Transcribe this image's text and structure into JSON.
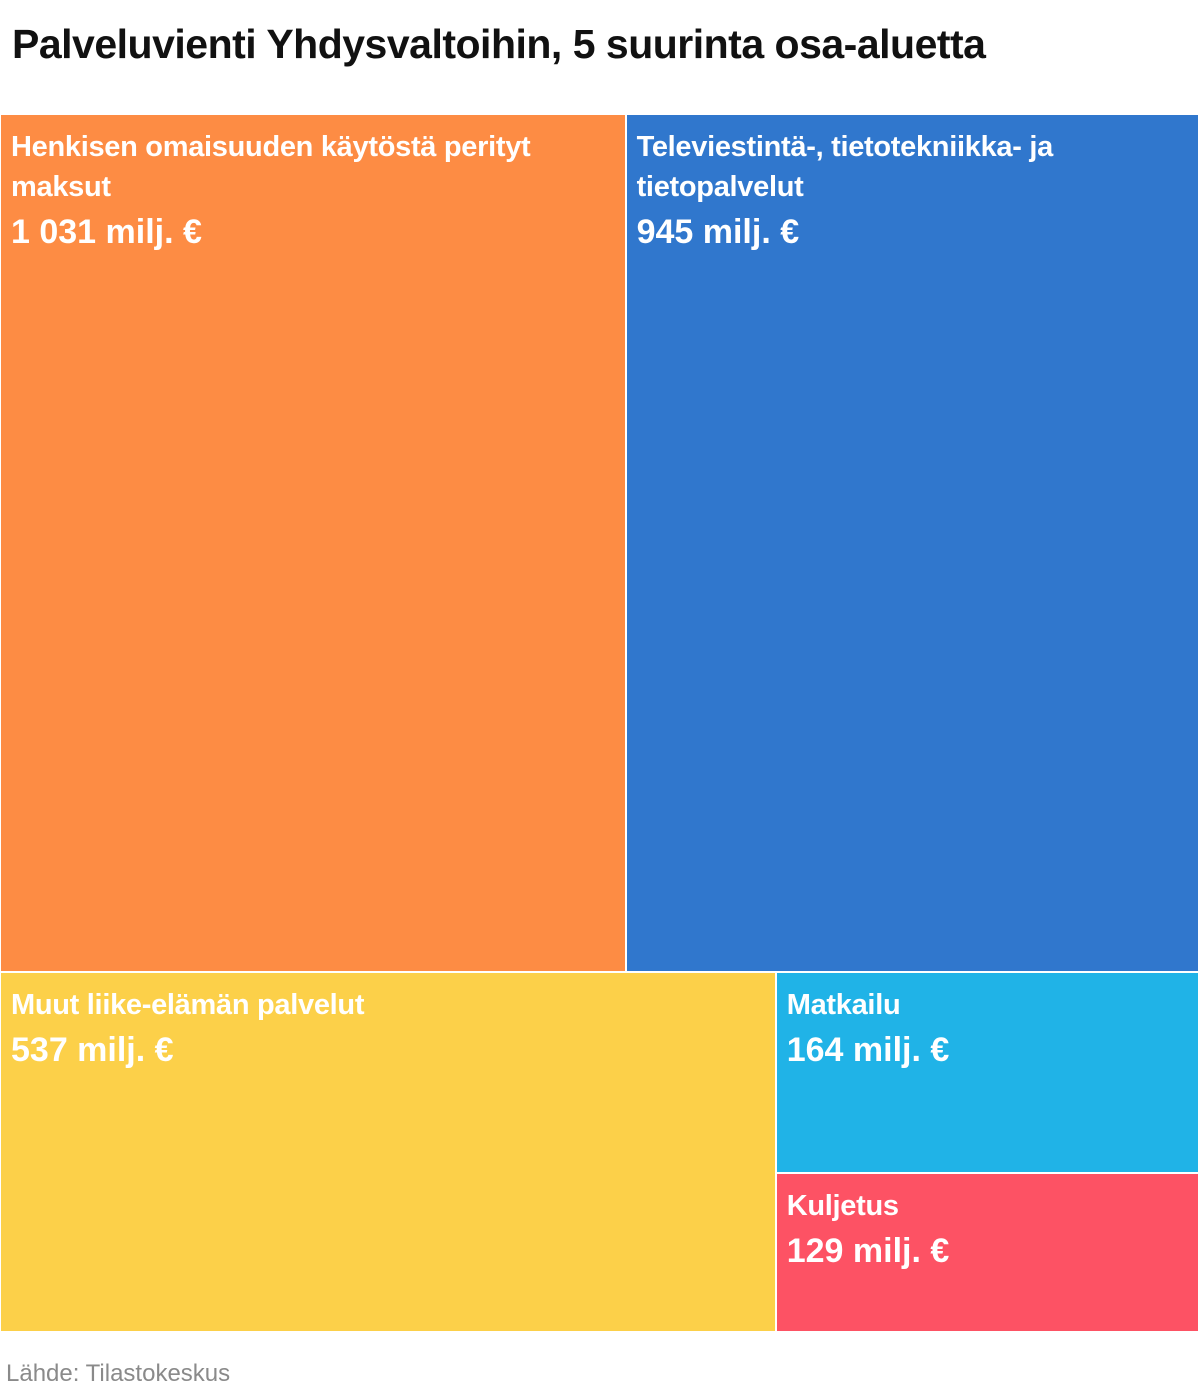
{
  "title": "Palveluvienti Yhdysvaltoihin, 5 suurinta osa-aluetta",
  "source": "Lähde: Tilastokeskus",
  "chart_data": {
    "type": "treemap",
    "title": "Palveluvienti Yhdysvaltoihin, 5 suurinta osa-aluetta",
    "unit": "milj. €",
    "items": [
      {
        "name": "Henkisen omaisuuden käytöstä perityt maksut",
        "value": 1031,
        "value_label": "1 031 milj. €",
        "color": "#fd8c44"
      },
      {
        "name": "Televiestintä-, tietotekniikka- ja tietopalvelut",
        "value": 945,
        "value_label": "945 milj. €",
        "color": "#3077cd"
      },
      {
        "name": "Muut liike-elämän palvelut",
        "value": 537,
        "value_label": "537 milj. €",
        "color": "#fcd049"
      },
      {
        "name": "Matkailu",
        "value": 164,
        "value_label": "164 milj. €",
        "color": "#20b3e7"
      },
      {
        "name": "Kuljetus",
        "value": 129,
        "value_label": "129 milj. €",
        "color": "#fd5264"
      }
    ]
  }
}
